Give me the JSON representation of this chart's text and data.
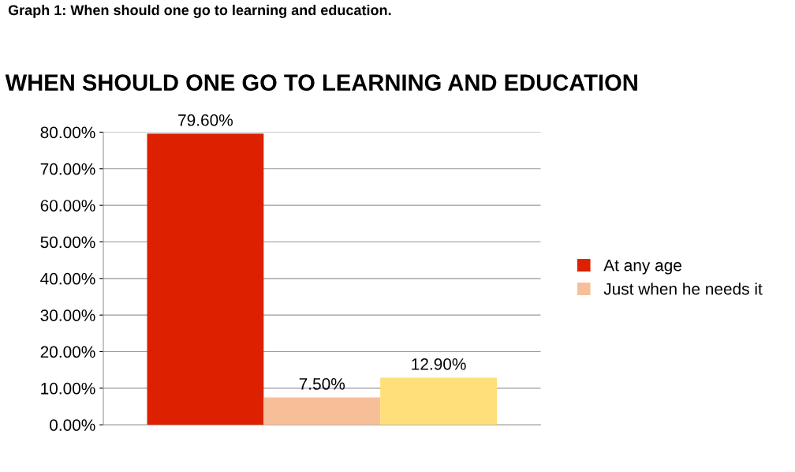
{
  "chart_data": {
    "type": "bar",
    "title": "WHEN SHOULD ONE GO TO LEARNING AND EDUCATION",
    "annotations": [
      "Graph 1: When should one go to learning and education."
    ],
    "categories": [
      null
    ],
    "series": [
      {
        "name": "At any age",
        "color": "#dd2000",
        "values": [
          79.6
        ],
        "value_labels": [
          "79.60%"
        ]
      },
      {
        "name": "Just when he needs it",
        "color": "#f7bf98",
        "values": [
          7.5
        ],
        "value_labels": [
          "7.50%"
        ]
      },
      {
        "color": "#ffdf7a",
        "values": [
          12.9
        ],
        "value_labels": [
          "12.90%"
        ]
      }
    ],
    "ylim": [
      0,
      80
    ],
    "yticks": [
      {
        "value": 0,
        "label": "0.00%"
      },
      {
        "value": 10,
        "label": "10.00%"
      },
      {
        "value": 20,
        "label": "20.00%"
      },
      {
        "value": 30,
        "label": "30.00%"
      },
      {
        "value": 40,
        "label": "40.00%"
      },
      {
        "value": 50,
        "label": "50.00%"
      },
      {
        "value": 60,
        "label": "60.00%"
      },
      {
        "value": 70,
        "label": "70.00%"
      },
      {
        "value": 80,
        "label": "80.00%"
      }
    ],
    "grid": "y",
    "legend": "right"
  }
}
